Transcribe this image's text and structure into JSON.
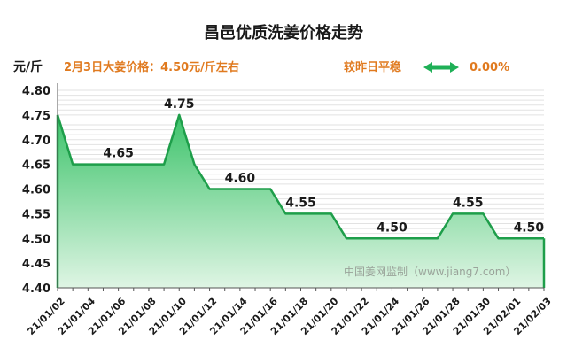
{
  "chart_data": {
    "type": "area",
    "title": "昌邑优质洗姜价格走势",
    "ylabel": "元/斤",
    "summary": "2月3日大姜价格：4.50元/斤左右",
    "change_label": "较昨日平稳",
    "change_value": "0.00%",
    "watermark": "中国姜网监制（www.jiang7.com）",
    "ylim": [
      4.4,
      4.8
    ],
    "yticks": [
      "4.40",
      "4.45",
      "4.50",
      "4.55",
      "4.60",
      "4.65",
      "4.70",
      "4.75",
      "4.80"
    ],
    "xticks": [
      "21/01/02",
      "21/01/04",
      "21/01/06",
      "21/01/08",
      "21/01/10",
      "21/01/12",
      "21/01/14",
      "21/01/16",
      "21/01/18",
      "21/01/20",
      "21/01/22",
      "21/01/24",
      "21/01/26",
      "21/01/28",
      "21/01/30",
      "21/02/01",
      "21/02/03"
    ],
    "x": [
      "21/01/02",
      "21/01/03",
      "21/01/04",
      "21/01/05",
      "21/01/06",
      "21/01/07",
      "21/01/08",
      "21/01/09",
      "21/01/10",
      "21/01/11",
      "21/01/12",
      "21/01/13",
      "21/01/14",
      "21/01/15",
      "21/01/16",
      "21/01/17",
      "21/01/18",
      "21/01/19",
      "21/01/20",
      "21/01/21",
      "21/01/22",
      "21/01/23",
      "21/01/24",
      "21/01/25",
      "21/01/26",
      "21/01/27",
      "21/01/28",
      "21/01/29",
      "21/01/30",
      "21/01/31",
      "21/02/01",
      "21/02/02",
      "21/02/03"
    ],
    "values": [
      4.75,
      4.65,
      4.65,
      4.65,
      4.65,
      4.65,
      4.65,
      4.65,
      4.75,
      4.65,
      4.6,
      4.6,
      4.6,
      4.6,
      4.6,
      4.55,
      4.55,
      4.55,
      4.55,
      4.5,
      4.5,
      4.5,
      4.5,
      4.5,
      4.5,
      4.5,
      4.55,
      4.55,
      4.55,
      4.5,
      4.5,
      4.5,
      4.5
    ],
    "data_labels": [
      {
        "x": "21/01/06",
        "text": "4.65"
      },
      {
        "x": "21/01/10",
        "text": "4.75"
      },
      {
        "x": "21/01/14",
        "text": "4.60"
      },
      {
        "x": "21/01/18",
        "text": "4.55"
      },
      {
        "x": "21/01/24",
        "text": "4.50"
      },
      {
        "x": "21/01/29",
        "text": "4.55"
      },
      {
        "x": "21/02/02",
        "text": "4.50"
      }
    ],
    "colors": {
      "line": "#1e9e4a",
      "fill_top": "#3cc36a",
      "fill_bottom": "#dff5e4",
      "arrow": "#1fb057",
      "summary": "#e07a1f"
    }
  }
}
